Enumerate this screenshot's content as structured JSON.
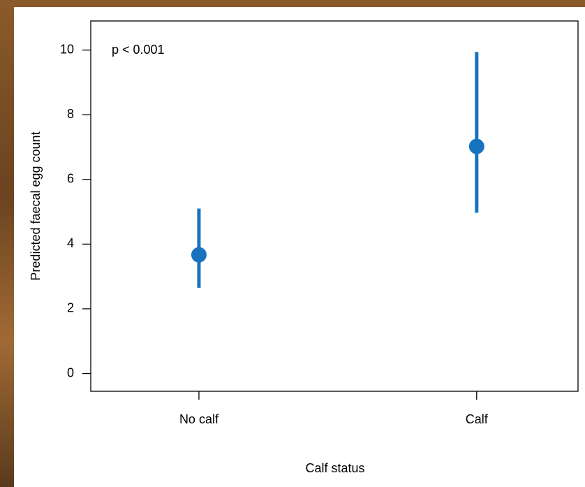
{
  "chart_data": {
    "type": "pointrange",
    "annotation": "p < 0.001",
    "xlabel": "Calf status",
    "ylabel": "Predicted faecal egg count",
    "categories": [
      "No calf",
      "Calf"
    ],
    "values": [
      3.67,
      7.02
    ],
    "lower": [
      2.65,
      4.97
    ],
    "upper": [
      5.1,
      9.94
    ],
    "color": "#1873be",
    "ylim": [
      -0.55,
      10.9
    ],
    "yticks": [
      0,
      2,
      4,
      6,
      8,
      10
    ]
  }
}
